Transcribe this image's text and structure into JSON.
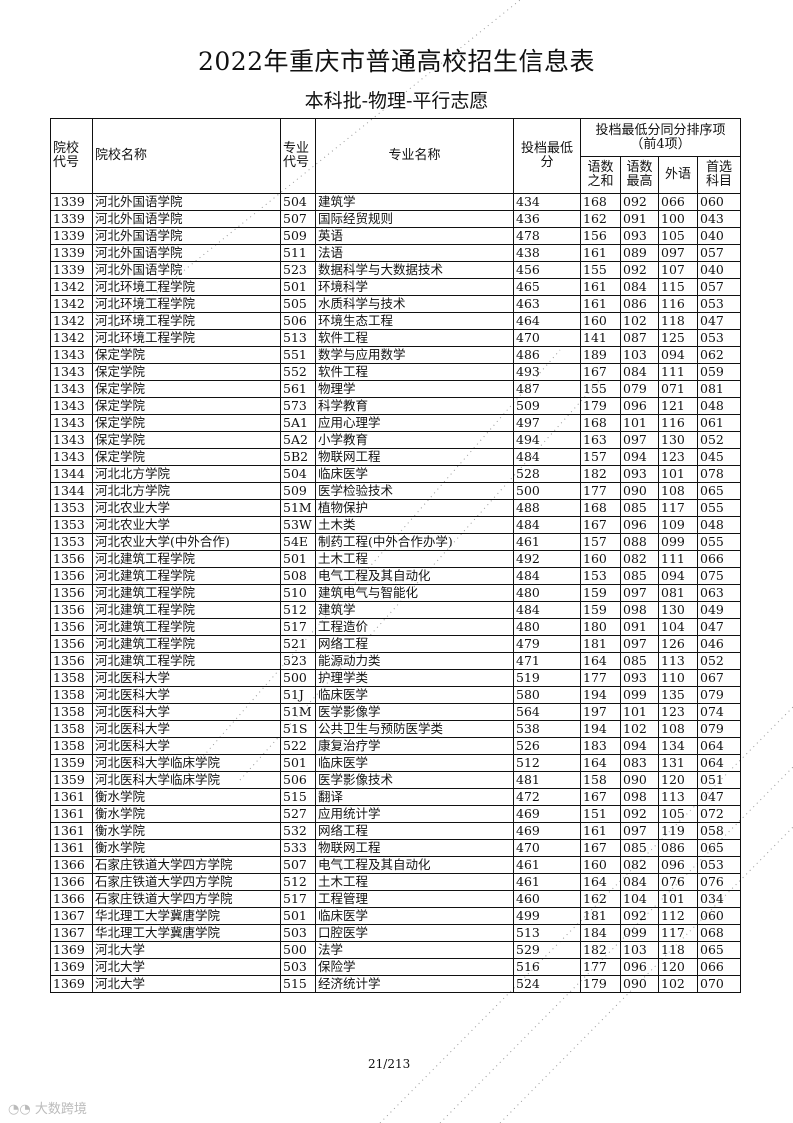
{
  "title": "2022年重庆市普通高校招生信息表",
  "subtitle": "本科批-物理-平行志愿",
  "headers": {
    "school_code": "院校代号",
    "school_name": "院校名称",
    "major_code": "专业代号",
    "major_name": "专业名称",
    "min_score": "投档最低分",
    "tiebreak_group": "投档最低分同分排序项",
    "tiebreak_note": "（前4项）",
    "yushu_sum": "语数之和",
    "yushu_max": "语数最高",
    "foreign": "外语",
    "first_subject": "首选科目"
  },
  "rows": [
    [
      "1339",
      "河北外国语学院",
      "504",
      "建筑学",
      "434",
      "168",
      "092",
      "066",
      "060"
    ],
    [
      "1339",
      "河北外国语学院",
      "507",
      "国际经贸规则",
      "436",
      "162",
      "091",
      "100",
      "043"
    ],
    [
      "1339",
      "河北外国语学院",
      "509",
      "英语",
      "478",
      "156",
      "093",
      "105",
      "040"
    ],
    [
      "1339",
      "河北外国语学院",
      "511",
      "法语",
      "438",
      "161",
      "089",
      "097",
      "057"
    ],
    [
      "1339",
      "河北外国语学院",
      "523",
      "数据科学与大数据技术",
      "456",
      "155",
      "092",
      "107",
      "040"
    ],
    [
      "1342",
      "河北环境工程学院",
      "501",
      "环境科学",
      "465",
      "161",
      "084",
      "115",
      "057"
    ],
    [
      "1342",
      "河北环境工程学院",
      "505",
      "水质科学与技术",
      "463",
      "161",
      "086",
      "116",
      "053"
    ],
    [
      "1342",
      "河北环境工程学院",
      "506",
      "环境生态工程",
      "464",
      "160",
      "102",
      "118",
      "047"
    ],
    [
      "1342",
      "河北环境工程学院",
      "513",
      "软件工程",
      "470",
      "141",
      "087",
      "125",
      "053"
    ],
    [
      "1343",
      "保定学院",
      "551",
      "数学与应用数学",
      "486",
      "189",
      "103",
      "094",
      "062"
    ],
    [
      "1343",
      "保定学院",
      "552",
      "软件工程",
      "493",
      "167",
      "084",
      "111",
      "059"
    ],
    [
      "1343",
      "保定学院",
      "561",
      "物理学",
      "487",
      "155",
      "079",
      "071",
      "081"
    ],
    [
      "1343",
      "保定学院",
      "573",
      "科学教育",
      "509",
      "179",
      "096",
      "121",
      "048"
    ],
    [
      "1343",
      "保定学院",
      "5A1",
      "应用心理学",
      "497",
      "168",
      "101",
      "116",
      "061"
    ],
    [
      "1343",
      "保定学院",
      "5A2",
      "小学教育",
      "494",
      "163",
      "097",
      "130",
      "052"
    ],
    [
      "1343",
      "保定学院",
      "5B2",
      "物联网工程",
      "484",
      "157",
      "094",
      "123",
      "045"
    ],
    [
      "1344",
      "河北北方学院",
      "504",
      "临床医学",
      "528",
      "182",
      "093",
      "101",
      "078"
    ],
    [
      "1344",
      "河北北方学院",
      "509",
      "医学检验技术",
      "500",
      "177",
      "090",
      "108",
      "065"
    ],
    [
      "1353",
      "河北农业大学",
      "51M",
      "植物保护",
      "488",
      "168",
      "085",
      "117",
      "055"
    ],
    [
      "1353",
      "河北农业大学",
      "53W",
      "土木类",
      "484",
      "167",
      "096",
      "109",
      "048"
    ],
    [
      "1353",
      "河北农业大学(中外合作)",
      "54E",
      "制药工程(中外合作办学)",
      "461",
      "157",
      "088",
      "099",
      "055"
    ],
    [
      "1356",
      "河北建筑工程学院",
      "501",
      "土木工程",
      "492",
      "160",
      "082",
      "111",
      "066"
    ],
    [
      "1356",
      "河北建筑工程学院",
      "508",
      "电气工程及其自动化",
      "484",
      "153",
      "085",
      "094",
      "075"
    ],
    [
      "1356",
      "河北建筑工程学院",
      "510",
      "建筑电气与智能化",
      "480",
      "159",
      "097",
      "081",
      "063"
    ],
    [
      "1356",
      "河北建筑工程学院",
      "512",
      "建筑学",
      "484",
      "159",
      "098",
      "130",
      "049"
    ],
    [
      "1356",
      "河北建筑工程学院",
      "517",
      "工程造价",
      "480",
      "180",
      "091",
      "104",
      "047"
    ],
    [
      "1356",
      "河北建筑工程学院",
      "521",
      "网络工程",
      "479",
      "181",
      "097",
      "126",
      "046"
    ],
    [
      "1356",
      "河北建筑工程学院",
      "523",
      "能源动力类",
      "471",
      "164",
      "085",
      "113",
      "052"
    ],
    [
      "1358",
      "河北医科大学",
      "500",
      "护理学类",
      "519",
      "177",
      "093",
      "110",
      "067"
    ],
    [
      "1358",
      "河北医科大学",
      "51J",
      "临床医学",
      "580",
      "194",
      "099",
      "135",
      "079"
    ],
    [
      "1358",
      "河北医科大学",
      "51M",
      "医学影像学",
      "564",
      "197",
      "101",
      "123",
      "074"
    ],
    [
      "1358",
      "河北医科大学",
      "51S",
      "公共卫生与预防医学类",
      "538",
      "194",
      "102",
      "108",
      "079"
    ],
    [
      "1358",
      "河北医科大学",
      "522",
      "康复治疗学",
      "526",
      "183",
      "094",
      "134",
      "064"
    ],
    [
      "1359",
      "河北医科大学临床学院",
      "501",
      "临床医学",
      "512",
      "164",
      "083",
      "131",
      "064"
    ],
    [
      "1359",
      "河北医科大学临床学院",
      "506",
      "医学影像技术",
      "481",
      "158",
      "090",
      "120",
      "051"
    ],
    [
      "1361",
      "衡水学院",
      "515",
      "翻译",
      "472",
      "167",
      "098",
      "113",
      "047"
    ],
    [
      "1361",
      "衡水学院",
      "527",
      "应用统计学",
      "469",
      "151",
      "092",
      "105",
      "072"
    ],
    [
      "1361",
      "衡水学院",
      "532",
      "网络工程",
      "469",
      "161",
      "097",
      "119",
      "058"
    ],
    [
      "1361",
      "衡水学院",
      "533",
      "物联网工程",
      "470",
      "167",
      "085",
      "086",
      "065"
    ],
    [
      "1366",
      "石家庄铁道大学四方学院",
      "507",
      "电气工程及其自动化",
      "461",
      "160",
      "082",
      "096",
      "053"
    ],
    [
      "1366",
      "石家庄铁道大学四方学院",
      "512",
      "土木工程",
      "461",
      "164",
      "084",
      "076",
      "076"
    ],
    [
      "1366",
      "石家庄铁道大学四方学院",
      "517",
      "工程管理",
      "460",
      "162",
      "104",
      "101",
      "034"
    ],
    [
      "1367",
      "华北理工大学冀唐学院",
      "501",
      "临床医学",
      "499",
      "181",
      "092",
      "112",
      "060"
    ],
    [
      "1367",
      "华北理工大学冀唐学院",
      "503",
      "口腔医学",
      "513",
      "184",
      "099",
      "117",
      "068"
    ],
    [
      "1369",
      "河北大学",
      "500",
      "法学",
      "529",
      "182",
      "103",
      "118",
      "065"
    ],
    [
      "1369",
      "河北大学",
      "503",
      "保险学",
      "516",
      "177",
      "096",
      "120",
      "066"
    ],
    [
      "1369",
      "河北大学",
      "515",
      "经济统计学",
      "524",
      "179",
      "090",
      "102",
      "070"
    ]
  ],
  "footer": {
    "page": "21/213"
  },
  "watermark": "大数跨境"
}
